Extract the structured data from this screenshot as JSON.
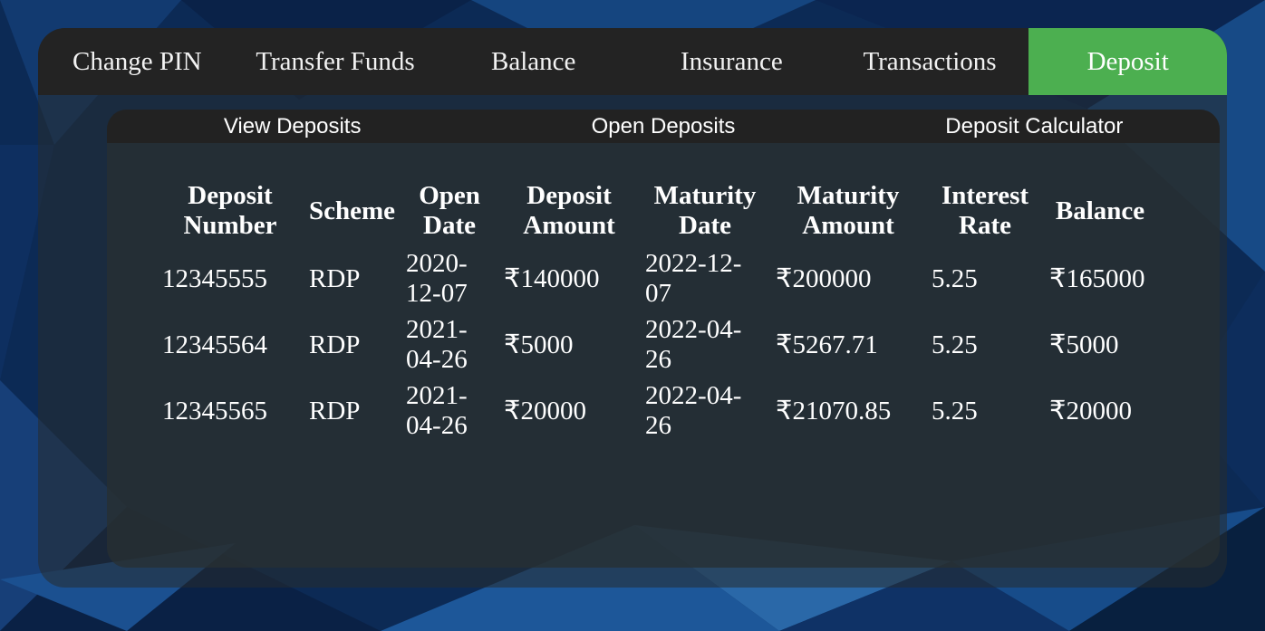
{
  "colors": {
    "accent": "#4caf50",
    "tabbar": "#232323",
    "background": "#0c2a55"
  },
  "nav": {
    "tabs": [
      {
        "label": "Change PIN"
      },
      {
        "label": "Transfer Funds"
      },
      {
        "label": "Balance"
      },
      {
        "label": "Insurance"
      },
      {
        "label": "Transactions"
      },
      {
        "label": "Deposit",
        "active": true
      }
    ]
  },
  "deposit": {
    "subtabs": [
      {
        "label": "View Deposits"
      },
      {
        "label": "Open Deposits"
      },
      {
        "label": "Deposit Calculator"
      }
    ],
    "table": {
      "headers": [
        "Deposit Number",
        "Scheme",
        "Open Date",
        "Deposit Amount",
        "Maturity Date",
        "Maturity Amount",
        "Interest Rate",
        "Balance"
      ],
      "rows": [
        [
          "12345555",
          "RDP",
          "2020-12-07",
          "₹140000",
          "2022-12-07",
          "₹200000",
          "5.25",
          "₹165000"
        ],
        [
          "12345564",
          "RDP",
          "2021-04-26",
          "₹5000",
          "2022-04-26",
          "₹5267.71",
          "5.25",
          "₹5000"
        ],
        [
          "12345565",
          "RDP",
          "2021-04-26",
          "₹20000",
          "2022-04-26",
          "₹21070.85",
          "5.25",
          "₹20000"
        ]
      ]
    }
  }
}
